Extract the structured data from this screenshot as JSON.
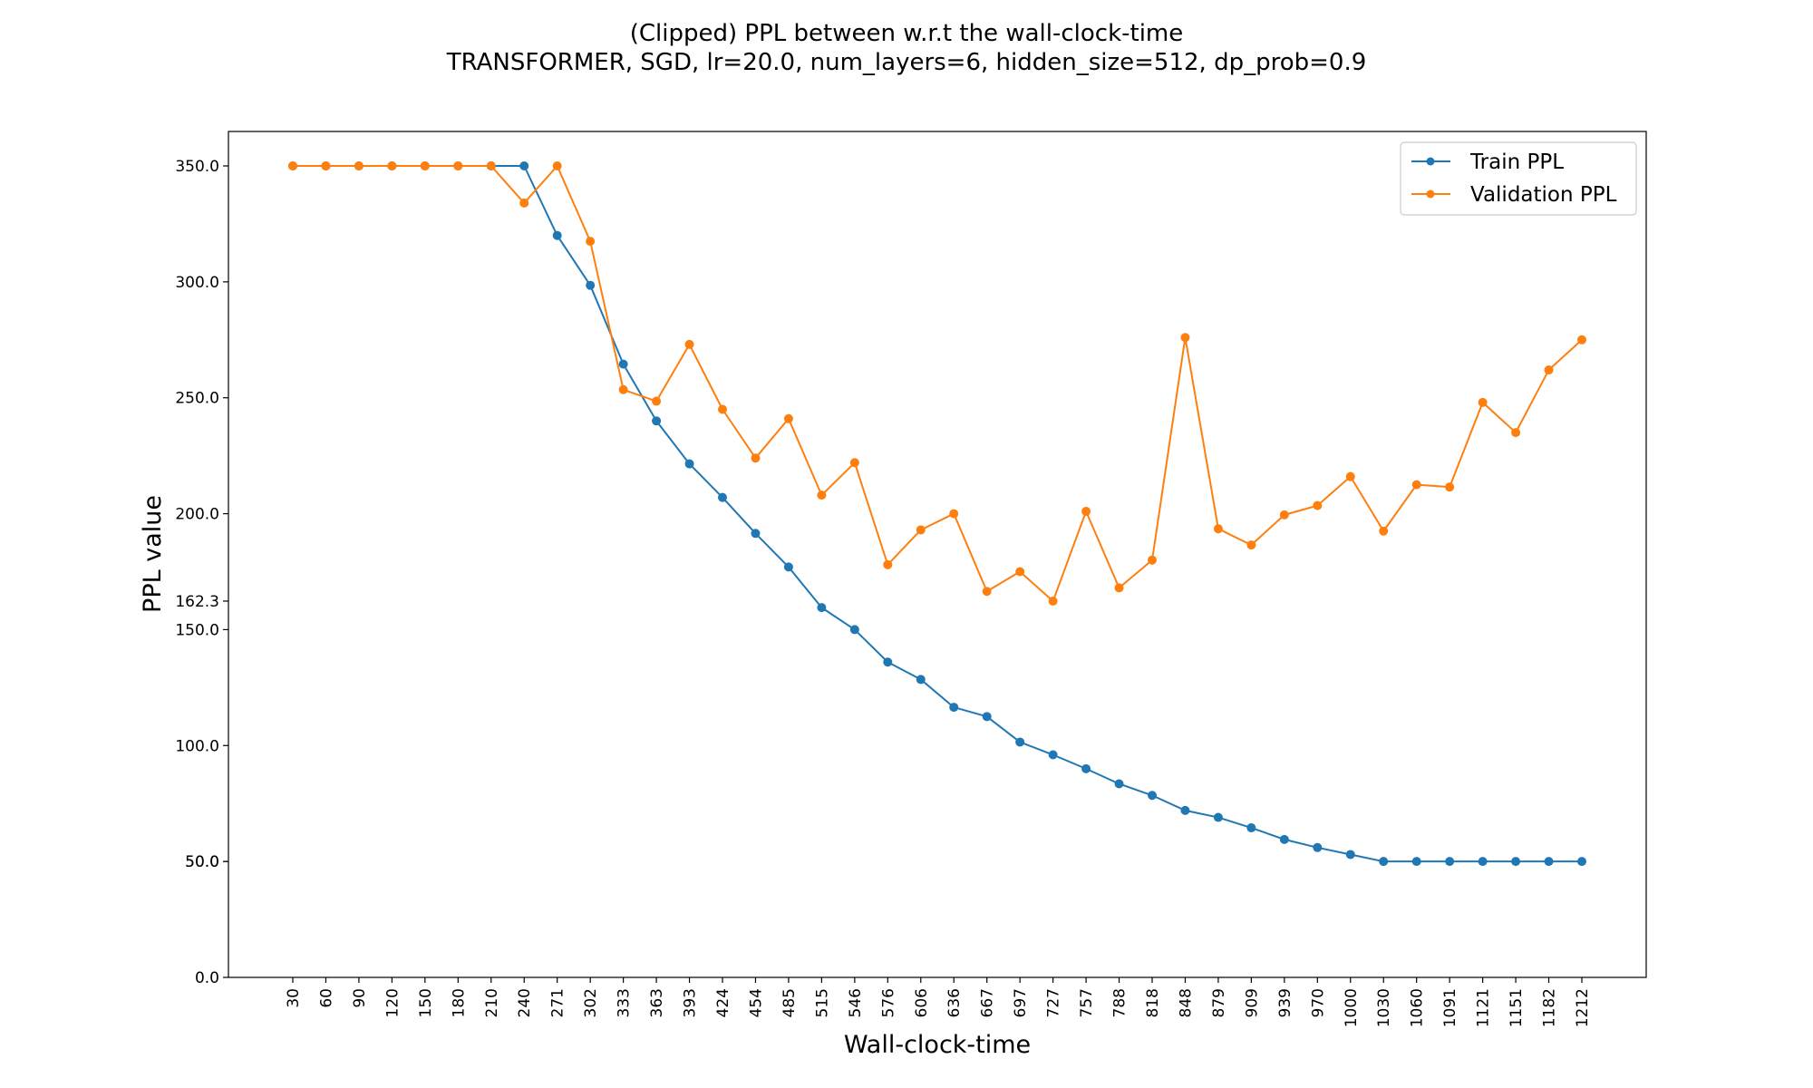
{
  "chart_data": {
    "type": "line",
    "title": "(Clipped) PPL between w.r.t the wall-clock-time",
    "subtitle": "TRANSFORMER, SGD, lr=20.0,  num_layers=6,  hidden_size=512,  dp_prob=0.9",
    "xlabel": "Wall-clock-time",
    "ylabel": "PPL value",
    "ylim": [
      0,
      365
    ],
    "yticks": [
      "0.0",
      "50.0",
      "50.0",
      "100.0",
      "150.0",
      "162.3",
      "200.0",
      "250.0",
      "300.0",
      "350.0"
    ],
    "ytick_values": [
      0,
      50,
      50,
      100,
      150,
      162.3,
      200,
      250,
      300,
      350
    ],
    "categories": [
      "30",
      "60",
      "90",
      "120",
      "150",
      "180",
      "210",
      "240",
      "271",
      "302",
      "333",
      "363",
      "393",
      "424",
      "454",
      "485",
      "515",
      "546",
      "576",
      "606",
      "636",
      "667",
      "697",
      "727",
      "757",
      "788",
      "818",
      "848",
      "879",
      "909",
      "939",
      "970",
      "1000",
      "1030",
      "1060",
      "1091",
      "1121",
      "1151",
      "1182",
      "1212"
    ],
    "legend_position": "top-right",
    "grid": false,
    "series": [
      {
        "name": "Train PPL",
        "color": "#1f77b4",
        "values": [
          350,
          350,
          350,
          350,
          350,
          350,
          350,
          350,
          320,
          298.5,
          264.5,
          240,
          221.5,
          207,
          191.5,
          177,
          159.5,
          150,
          136,
          128.5,
          116.5,
          112.5,
          101.5,
          96,
          90,
          83.5,
          78.5,
          72,
          69,
          64.5,
          59.5,
          56,
          53,
          50,
          50,
          50,
          50,
          50,
          50,
          50
        ]
      },
      {
        "name": "Validation PPL",
        "color": "#ff7f0e",
        "values": [
          350,
          350,
          350,
          350,
          350,
          350,
          350,
          334,
          350,
          317.5,
          253.5,
          248.5,
          273,
          245,
          224,
          241,
          208,
          222,
          178,
          193,
          200,
          166.5,
          175,
          162.3,
          201,
          168,
          180,
          276,
          193.5,
          186.5,
          199.5,
          203.5,
          216,
          192.5,
          212.5,
          211.5,
          248,
          235,
          262,
          275
        ]
      }
    ]
  }
}
